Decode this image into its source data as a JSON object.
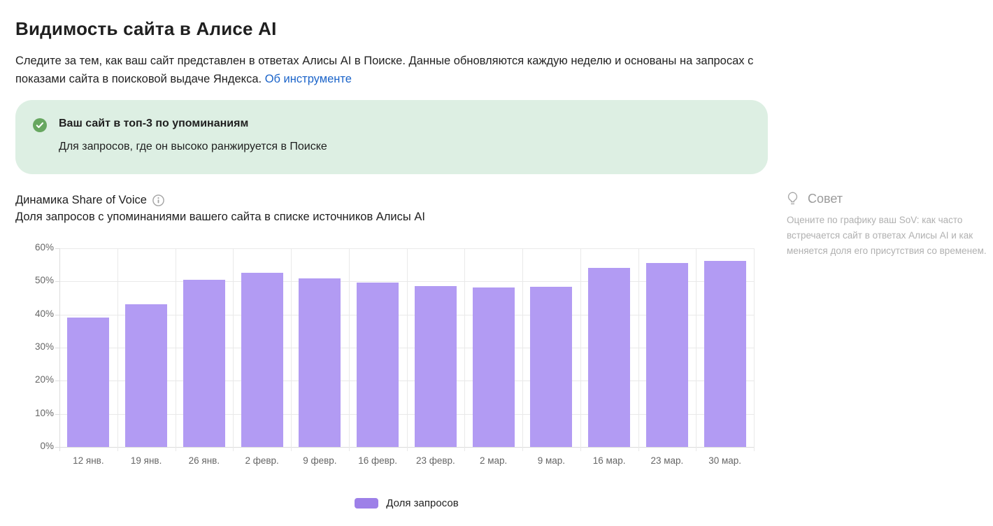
{
  "page": {
    "title": "Видимость сайта в Алисе AI",
    "description": "Следите за тем, как ваш сайт представлен в ответах Алисы AI в Поиске. Данные обновляются каждую неделю и основаны на запросах с показами сайта в поисковой выдаче Яндекса.",
    "about_link": "Об инструменте",
    "link_color": "#1b64c9"
  },
  "banner": {
    "icon": "check-circle-icon",
    "icon_color": "#67a760",
    "bg_color": "#ddefe3",
    "title": "Ваш сайт в топ-3 по упоминаниям",
    "subtitle": "Для запросов, где он высоко ранжируется в Поиске"
  },
  "chart": {
    "title": "Динамика Share of Voice",
    "info_icon": "info-icon",
    "subtitle": "Доля запросов с упоминаниями вашего сайта в списке источников Алисы AI",
    "legend": [
      {
        "label": "Доля запросов",
        "color": "#9d80e8"
      }
    ]
  },
  "chart_data": {
    "type": "bar",
    "title": "Динамика Share of Voice",
    "categories": [
      "12 янв.",
      "19 янв.",
      "26 янв.",
      "2 февр.",
      "9 февр.",
      "16 февр.",
      "23 февр.",
      "2 мар.",
      "9 мар.",
      "16 мар.",
      "23 мар.",
      "30 мар."
    ],
    "values": [
      39,
      43,
      50.5,
      52.7,
      51,
      49.7,
      48.5,
      48.2,
      48.4,
      54,
      55.6,
      56.1
    ],
    "unit": "%",
    "xlabel": "",
    "ylabel": "",
    "ylim": [
      0,
      60
    ],
    "ytick_step": 10,
    "ytick_labels": [
      "0%",
      "10%",
      "20%",
      "30%",
      "40%",
      "50%",
      "60%"
    ],
    "grid": true,
    "bar_color": "#b29bf3",
    "legend_entries": [
      "Доля запросов"
    ],
    "legend_position": "bottom"
  },
  "tip": {
    "icon": "lightbulb-icon",
    "title": "Совет",
    "text": "Оцените по графику ваш SoV: как часто встречается сайт в ответах Алисы AI и как меняется доля его присутствия со временем."
  }
}
